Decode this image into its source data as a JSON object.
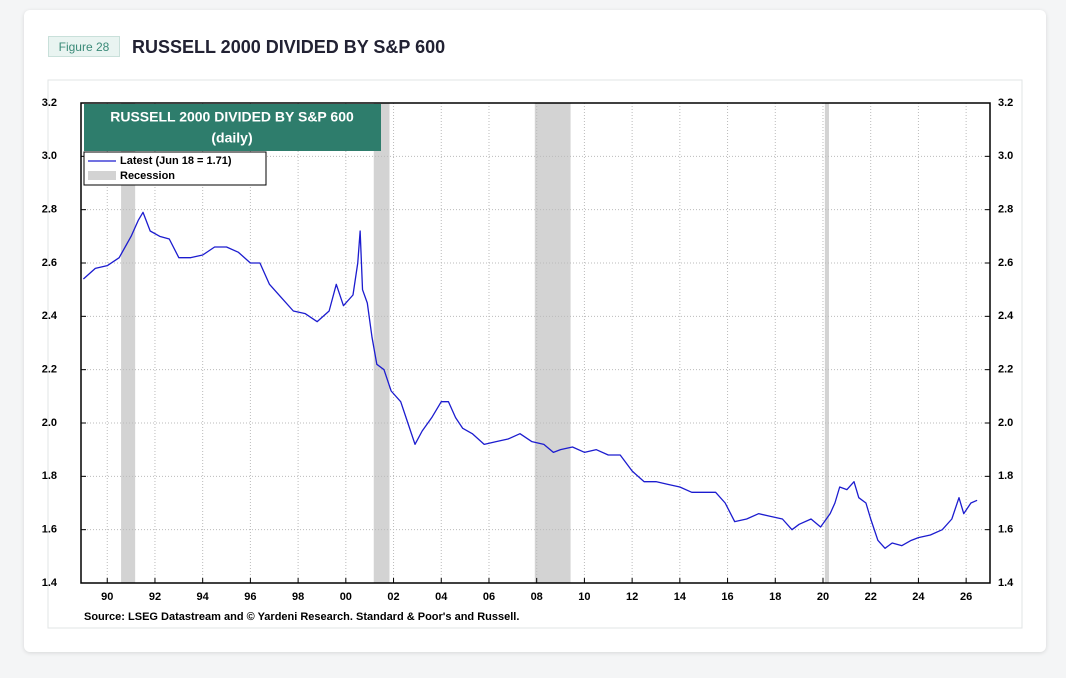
{
  "figure_label": "Figure 28",
  "header_title": "RUSSELL 2000 DIVIDED BY S&P 600",
  "chart_data": {
    "type": "line",
    "title": "RUSSELL 2000 DIVIDED BY S&P 600",
    "subtitle": "(daily)",
    "x": [
      1989.0,
      1989.5,
      1990.0,
      1990.5,
      1991.0,
      1991.3,
      1991.5,
      1991.8,
      1992.2,
      1992.6,
      1993.0,
      1993.5,
      1994.0,
      1994.5,
      1995.0,
      1995.5,
      1996.0,
      1996.4,
      1996.8,
      1997.3,
      1997.8,
      1998.3,
      1998.8,
      1999.3,
      1999.6,
      1999.9,
      2000.3,
      2000.5,
      2000.6,
      2000.7,
      2000.9,
      2001.1,
      2001.3,
      2001.6,
      2001.9,
      2002.3,
      2002.6,
      2002.9,
      2003.2,
      2003.6,
      2004.0,
      2004.3,
      2004.6,
      2004.9,
      2005.3,
      2005.8,
      2006.3,
      2006.8,
      2007.3,
      2007.8,
      2008.3,
      2008.7,
      2009.0,
      2009.5,
      2010.0,
      2010.5,
      2011.0,
      2011.5,
      2012.0,
      2012.5,
      2013.0,
      2013.5,
      2014.0,
      2014.5,
      2015.0,
      2015.5,
      2015.9,
      2016.3,
      2016.8,
      2017.3,
      2017.8,
      2018.3,
      2018.7,
      2019.0,
      2019.5,
      2019.9,
      2020.3,
      2020.5,
      2020.7,
      2021.0,
      2021.3,
      2021.5,
      2021.8,
      2022.0,
      2022.3,
      2022.6,
      2022.9,
      2023.3,
      2023.7,
      2024.0,
      2024.5,
      2025.0,
      2025.4,
      2025.7,
      2025.9,
      2026.2,
      2026.46
    ],
    "series": [
      {
        "name": "Latest (Jun 18 = 1.71)",
        "color": "#1c1ccf",
        "values": [
          2.54,
          2.58,
          2.59,
          2.62,
          2.7,
          2.76,
          2.79,
          2.72,
          2.7,
          2.69,
          2.62,
          2.62,
          2.63,
          2.66,
          2.66,
          2.64,
          2.6,
          2.6,
          2.52,
          2.47,
          2.42,
          2.41,
          2.38,
          2.42,
          2.52,
          2.44,
          2.48,
          2.6,
          2.72,
          2.5,
          2.45,
          2.32,
          2.22,
          2.2,
          2.12,
          2.08,
          2.0,
          1.92,
          1.97,
          2.02,
          2.08,
          2.08,
          2.02,
          1.98,
          1.96,
          1.92,
          1.93,
          1.94,
          1.96,
          1.93,
          1.92,
          1.89,
          1.9,
          1.91,
          1.89,
          1.9,
          1.88,
          1.88,
          1.82,
          1.78,
          1.78,
          1.77,
          1.76,
          1.74,
          1.74,
          1.74,
          1.7,
          1.63,
          1.64,
          1.66,
          1.65,
          1.64,
          1.6,
          1.62,
          1.64,
          1.61,
          1.66,
          1.7,
          1.76,
          1.75,
          1.78,
          1.72,
          1.7,
          1.64,
          1.56,
          1.53,
          1.55,
          1.54,
          1.56,
          1.57,
          1.58,
          1.6,
          1.64,
          1.72,
          1.66,
          1.7,
          1.71
        ]
      }
    ],
    "recessions": {
      "name": "Recession",
      "color": "#d3d3d3",
      "periods": [
        [
          1990.58,
          1991.17
        ],
        [
          2001.17,
          2001.83
        ],
        [
          2007.92,
          2009.42
        ],
        [
          2020.08,
          2020.25
        ]
      ]
    },
    "xlim": [
      1988.9,
      2027.0
    ],
    "xticks": [
      {
        "value": 1990,
        "label": "90"
      },
      {
        "value": 1992,
        "label": "92"
      },
      {
        "value": 1994,
        "label": "94"
      },
      {
        "value": 1996,
        "label": "96"
      },
      {
        "value": 1998,
        "label": "98"
      },
      {
        "value": 2000,
        "label": "00"
      },
      {
        "value": 2002,
        "label": "02"
      },
      {
        "value": 2004,
        "label": "04"
      },
      {
        "value": 2006,
        "label": "06"
      },
      {
        "value": 2008,
        "label": "08"
      },
      {
        "value": 2010,
        "label": "10"
      },
      {
        "value": 2012,
        "label": "12"
      },
      {
        "value": 2014,
        "label": "14"
      },
      {
        "value": 2016,
        "label": "16"
      },
      {
        "value": 2018,
        "label": "18"
      },
      {
        "value": 2020,
        "label": "20"
      },
      {
        "value": 2022,
        "label": "22"
      },
      {
        "value": 2024,
        "label": "24"
      },
      {
        "value": 2026,
        "label": "26"
      }
    ],
    "ylim": [
      1.4,
      3.2
    ],
    "yticks": [
      1.4,
      1.6,
      1.8,
      {
        "value": 2,
        "label": "2.0"
      },
      2.2,
      2.4,
      2.6,
      2.8,
      {
        "value": 3,
        "label": "3.0"
      },
      3.2
    ],
    "right_axis": true,
    "grid": true,
    "source": "Source: LSEG Datastream and © Yardeni Research. Standard & Poor's and Russell."
  }
}
